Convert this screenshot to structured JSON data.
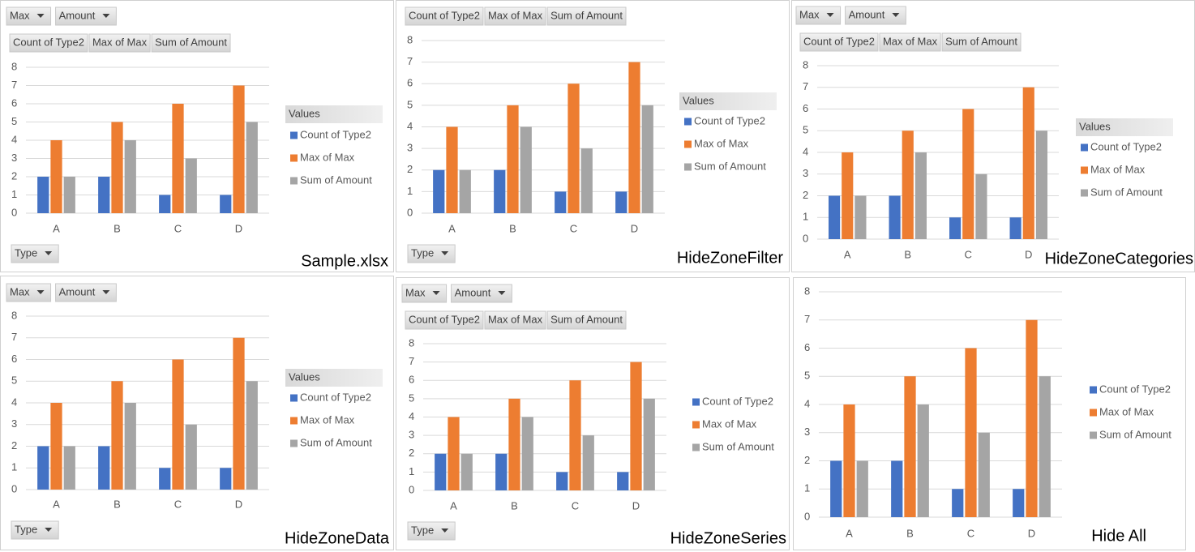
{
  "chart_data": [
    {
      "type": "bar",
      "caption": "Sample.xlsx",
      "filter_fields": [
        "Max",
        "Amount"
      ],
      "value_fields": [
        "Count of Type2",
        "Max of Max",
        "Sum of Amount"
      ],
      "axis_fields": [
        "Type"
      ],
      "legend_title": "Values",
      "categories": [
        "A",
        "B",
        "C",
        "D"
      ],
      "ylim": [
        0,
        8
      ],
      "yticks": [
        0,
        1,
        2,
        3,
        4,
        5,
        6,
        7,
        8
      ],
      "grid": true,
      "series": [
        {
          "name": "Count of Type2",
          "color": "#4472c4",
          "values": [
            2,
            2,
            1,
            1
          ]
        },
        {
          "name": "Max of Max",
          "color": "#ed7d31",
          "values": [
            4,
            5,
            6,
            7
          ]
        },
        {
          "name": "Sum of Amount",
          "color": "#a5a5a5",
          "values": [
            2,
            4,
            3,
            5
          ]
        }
      ]
    },
    {
      "type": "bar",
      "caption": "HideZoneFilter",
      "value_fields": [
        "Count of Type2",
        "Max of Max",
        "Sum of Amount"
      ],
      "axis_fields": [
        "Type"
      ],
      "legend_title": "Values",
      "categories": [
        "A",
        "B",
        "C",
        "D"
      ],
      "ylim": [
        0,
        8
      ],
      "yticks": [
        0,
        1,
        2,
        3,
        4,
        5,
        6,
        7,
        8
      ],
      "grid": true,
      "series": [
        {
          "name": "Count of Type2",
          "color": "#4472c4",
          "values": [
            2,
            2,
            1,
            1
          ]
        },
        {
          "name": "Max of Max",
          "color": "#ed7d31",
          "values": [
            4,
            5,
            6,
            7
          ]
        },
        {
          "name": "Sum of Amount",
          "color": "#a5a5a5",
          "values": [
            2,
            4,
            3,
            5
          ]
        }
      ]
    },
    {
      "type": "bar",
      "caption": "HideZoneCategories",
      "filter_fields": [
        "Max",
        "Amount"
      ],
      "value_fields": [
        "Count of Type2",
        "Max of Max",
        "Sum of Amount"
      ],
      "legend_title": "Values",
      "categories": [
        "A",
        "B",
        "C",
        "D"
      ],
      "ylim": [
        0,
        8
      ],
      "yticks": [
        0,
        1,
        2,
        3,
        4,
        5,
        6,
        7,
        8
      ],
      "grid": true,
      "series": [
        {
          "name": "Count of Type2",
          "color": "#4472c4",
          "values": [
            2,
            2,
            1,
            1
          ]
        },
        {
          "name": "Max of Max",
          "color": "#ed7d31",
          "values": [
            4,
            5,
            6,
            7
          ]
        },
        {
          "name": "Sum of Amount",
          "color": "#a5a5a5",
          "values": [
            2,
            4,
            3,
            5
          ]
        }
      ]
    },
    {
      "type": "bar",
      "caption": "HideZoneData",
      "filter_fields": [
        "Max",
        "Amount"
      ],
      "axis_fields": [
        "Type"
      ],
      "legend_title": "Values",
      "categories": [
        "A",
        "B",
        "C",
        "D"
      ],
      "ylim": [
        0,
        8
      ],
      "yticks": [
        0,
        1,
        2,
        3,
        4,
        5,
        6,
        7,
        8
      ],
      "grid": true,
      "series": [
        {
          "name": "Count of Type2",
          "color": "#4472c4",
          "values": [
            2,
            2,
            1,
            1
          ]
        },
        {
          "name": "Max of Max",
          "color": "#ed7d31",
          "values": [
            4,
            5,
            6,
            7
          ]
        },
        {
          "name": "Sum of Amount",
          "color": "#a5a5a5",
          "values": [
            2,
            4,
            3,
            5
          ]
        }
      ]
    },
    {
      "type": "bar",
      "caption": "HideZoneSeries",
      "filter_fields": [
        "Max",
        "Amount"
      ],
      "value_fields": [
        "Count of Type2",
        "Max of Max",
        "Sum of Amount"
      ],
      "axis_fields": [
        "Type"
      ],
      "categories": [
        "A",
        "B",
        "C",
        "D"
      ],
      "ylim": [
        0,
        8
      ],
      "yticks": [
        0,
        1,
        2,
        3,
        4,
        5,
        6,
        7,
        8
      ],
      "grid": true,
      "series": [
        {
          "name": "Count of Type2",
          "color": "#4472c4",
          "values": [
            2,
            2,
            1,
            1
          ]
        },
        {
          "name": "Max of Max",
          "color": "#ed7d31",
          "values": [
            4,
            5,
            6,
            7
          ]
        },
        {
          "name": "Sum of Amount",
          "color": "#a5a5a5",
          "values": [
            2,
            4,
            3,
            5
          ]
        }
      ]
    },
    {
      "type": "bar",
      "caption": "Hide All",
      "categories": [
        "A",
        "B",
        "C",
        "D"
      ],
      "ylim": [
        0,
        8
      ],
      "yticks": [
        0,
        1,
        2,
        3,
        4,
        5,
        6,
        7,
        8
      ],
      "grid": true,
      "series": [
        {
          "name": "Count of Type2",
          "color": "#4472c4",
          "values": [
            2,
            2,
            1,
            1
          ]
        },
        {
          "name": "Max of Max",
          "color": "#ed7d31",
          "values": [
            4,
            5,
            6,
            7
          ]
        },
        {
          "name": "Sum of Amount",
          "color": "#a5a5a5",
          "values": [
            2,
            4,
            3,
            5
          ]
        }
      ]
    }
  ]
}
